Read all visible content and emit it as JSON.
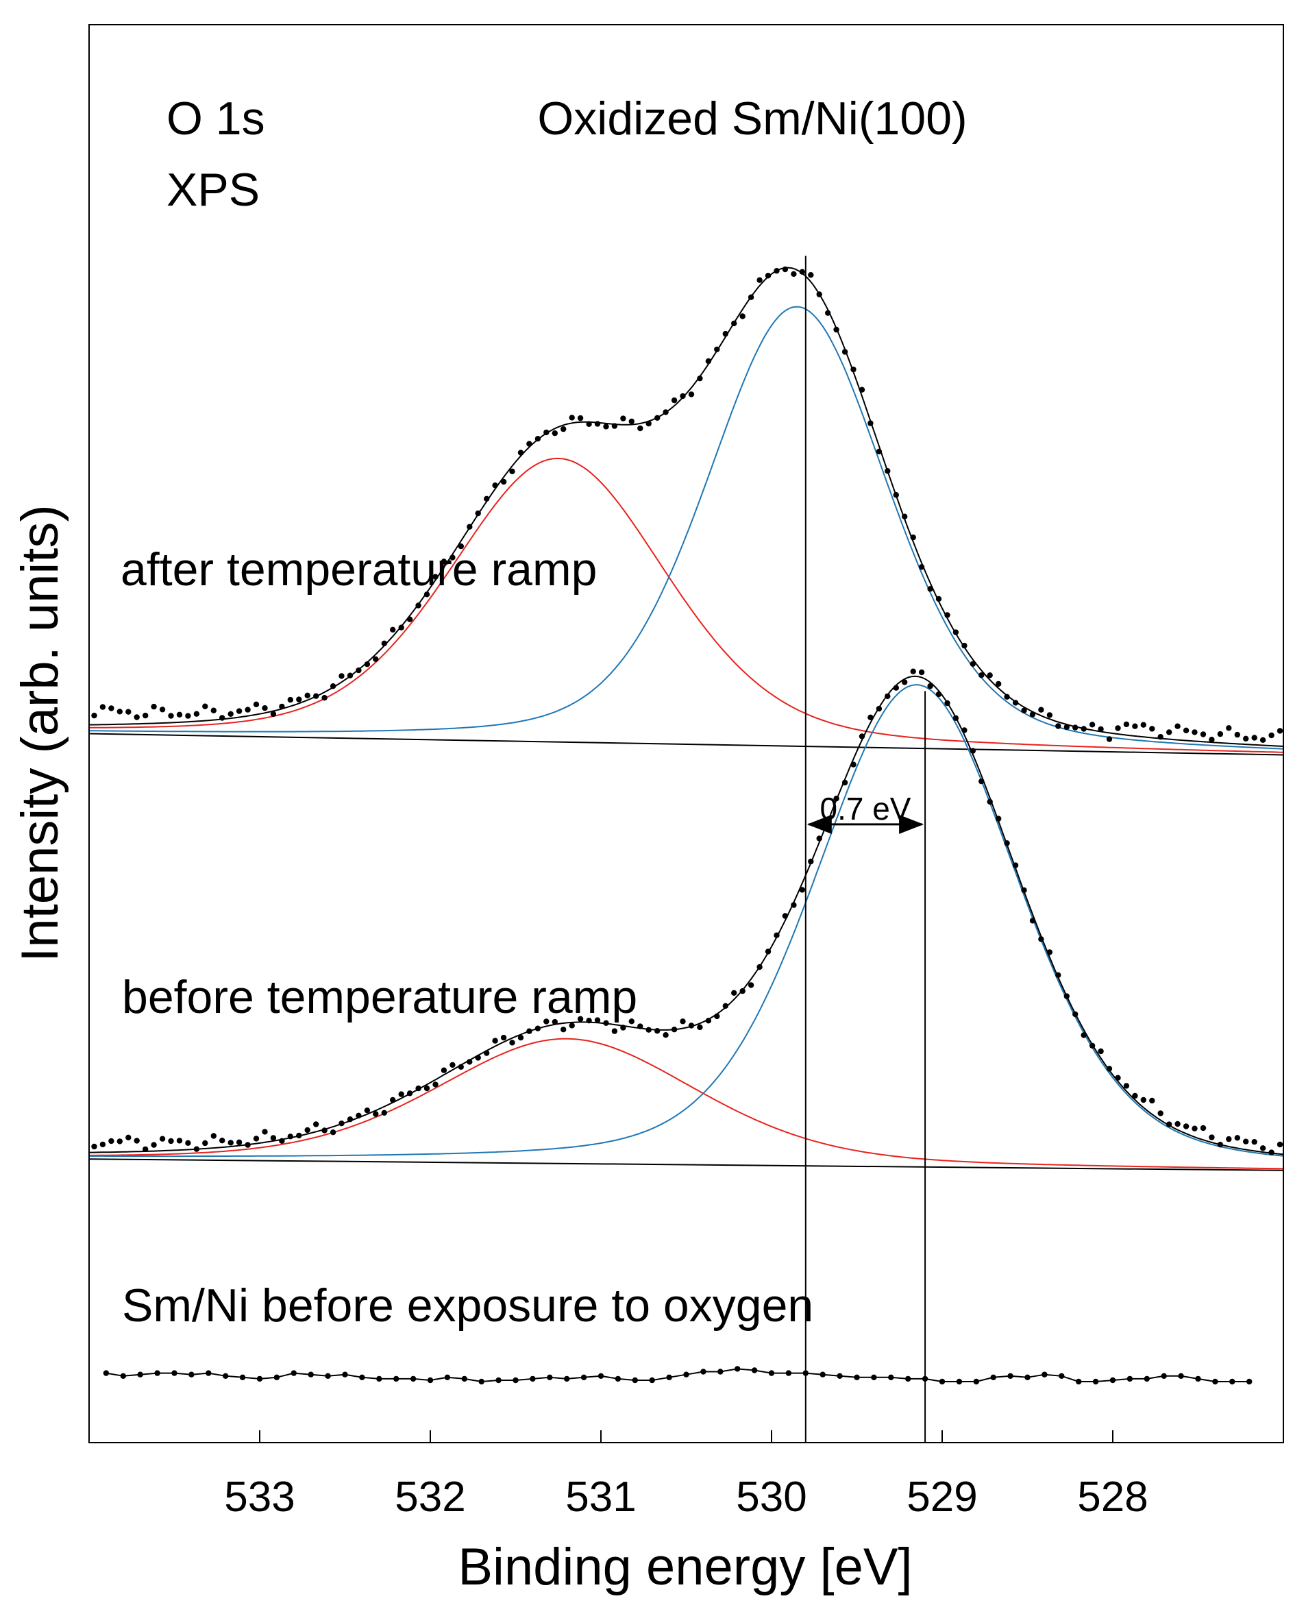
{
  "chart_data": {
    "type": "line",
    "title": "Oxidized Sm/Ni(100)",
    "annotations": {
      "spectrum": "O 1s",
      "technique": "XPS",
      "shift_label": "0.7 eV"
    },
    "xlabel": "Binding energy [eV]",
    "ylabel": "Intensity (arb. units)",
    "xlim": [
      534,
      527
    ],
    "x_reversed": true,
    "xticks": [
      533,
      532,
      531,
      530,
      529,
      528
    ],
    "xtick_labels": [
      "533",
      "532",
      "531",
      "530",
      "529",
      "528"
    ],
    "ylim": [
      0,
      10
    ],
    "yticks_shown": false,
    "reference_lines": [
      529.8,
      529.1
    ],
    "series_colors": {
      "data": "#000000",
      "envelope": "#000000",
      "component_high_BE": "#e8231d",
      "component_low_BE": "#1f77b4",
      "background": "#000000"
    },
    "spectra": [
      {
        "label": "after temperature ramp",
        "offset": 5.0,
        "background": {
          "x": [
            534,
            527
          ],
          "y": [
            0.0,
            -0.15
          ]
        },
        "components": [
          {
            "name": "component_high_BE",
            "center": 531.25,
            "amplitude": 2.0,
            "fwhm": 1.5
          },
          {
            "name": "component_low_BE",
            "center": 529.85,
            "amplitude": 3.1,
            "fwhm": 1.25
          }
        ],
        "tail": 0.1
      },
      {
        "label": "before temperature ramp",
        "offset": 2.0,
        "background": {
          "x": [
            534,
            527
          ],
          "y": [
            0.0,
            -0.08
          ]
        },
        "components": [
          {
            "name": "component_high_BE",
            "center": 531.2,
            "amplitude": 0.88,
            "fwhm": 1.8
          },
          {
            "name": "component_low_BE",
            "center": 529.15,
            "amplitude": 3.4,
            "fwhm": 1.4
          }
        ],
        "tail": 0.08
      },
      {
        "label": "Sm/Ni before exposure to oxygen",
        "offset": 0.45,
        "points_x": [
          533.9,
          533.8,
          533.7,
          533.6,
          533.5,
          533.4,
          533.3,
          533.2,
          533.1,
          533.0,
          532.9,
          532.8,
          532.7,
          532.6,
          532.5,
          532.4,
          532.3,
          532.2,
          532.1,
          532.0,
          531.9,
          531.8,
          531.7,
          531.6,
          531.5,
          531.4,
          531.3,
          531.2,
          531.1,
          531.0,
          530.9,
          530.8,
          530.7,
          530.6,
          530.5,
          530.4,
          530.3,
          530.2,
          530.1,
          530.0,
          529.9,
          529.8,
          529.7,
          529.6,
          529.5,
          529.4,
          529.3,
          529.2,
          529.1,
          529.0,
          528.9,
          528.8,
          528.7,
          528.6,
          528.5,
          528.4,
          528.3,
          528.2,
          528.1,
          528.0,
          527.9,
          527.8,
          527.7,
          527.6,
          527.5,
          527.4,
          527.3,
          527.2
        ],
        "points_y": [
          0.04,
          0.02,
          0.03,
          0.04,
          0.04,
          0.03,
          0.04,
          0.02,
          0.01,
          0.0,
          0.01,
          0.04,
          0.03,
          0.02,
          0.03,
          0.01,
          0.0,
          0.0,
          0.0,
          -0.01,
          0.01,
          0.0,
          -0.02,
          -0.01,
          -0.01,
          0.0,
          0.01,
          0.0,
          0.01,
          0.02,
          0.0,
          -0.01,
          -0.01,
          0.01,
          0.03,
          0.05,
          0.05,
          0.07,
          0.06,
          0.04,
          0.04,
          0.04,
          0.03,
          0.02,
          0.01,
          0.01,
          0.01,
          0.0,
          0.0,
          -0.02,
          -0.02,
          -0.02,
          0.01,
          0.02,
          0.01,
          0.03,
          0.02,
          -0.02,
          -0.02,
          -0.01,
          0.0,
          0.0,
          0.02,
          0.02,
          0.0,
          -0.02,
          -0.02,
          -0.02
        ]
      }
    ]
  }
}
